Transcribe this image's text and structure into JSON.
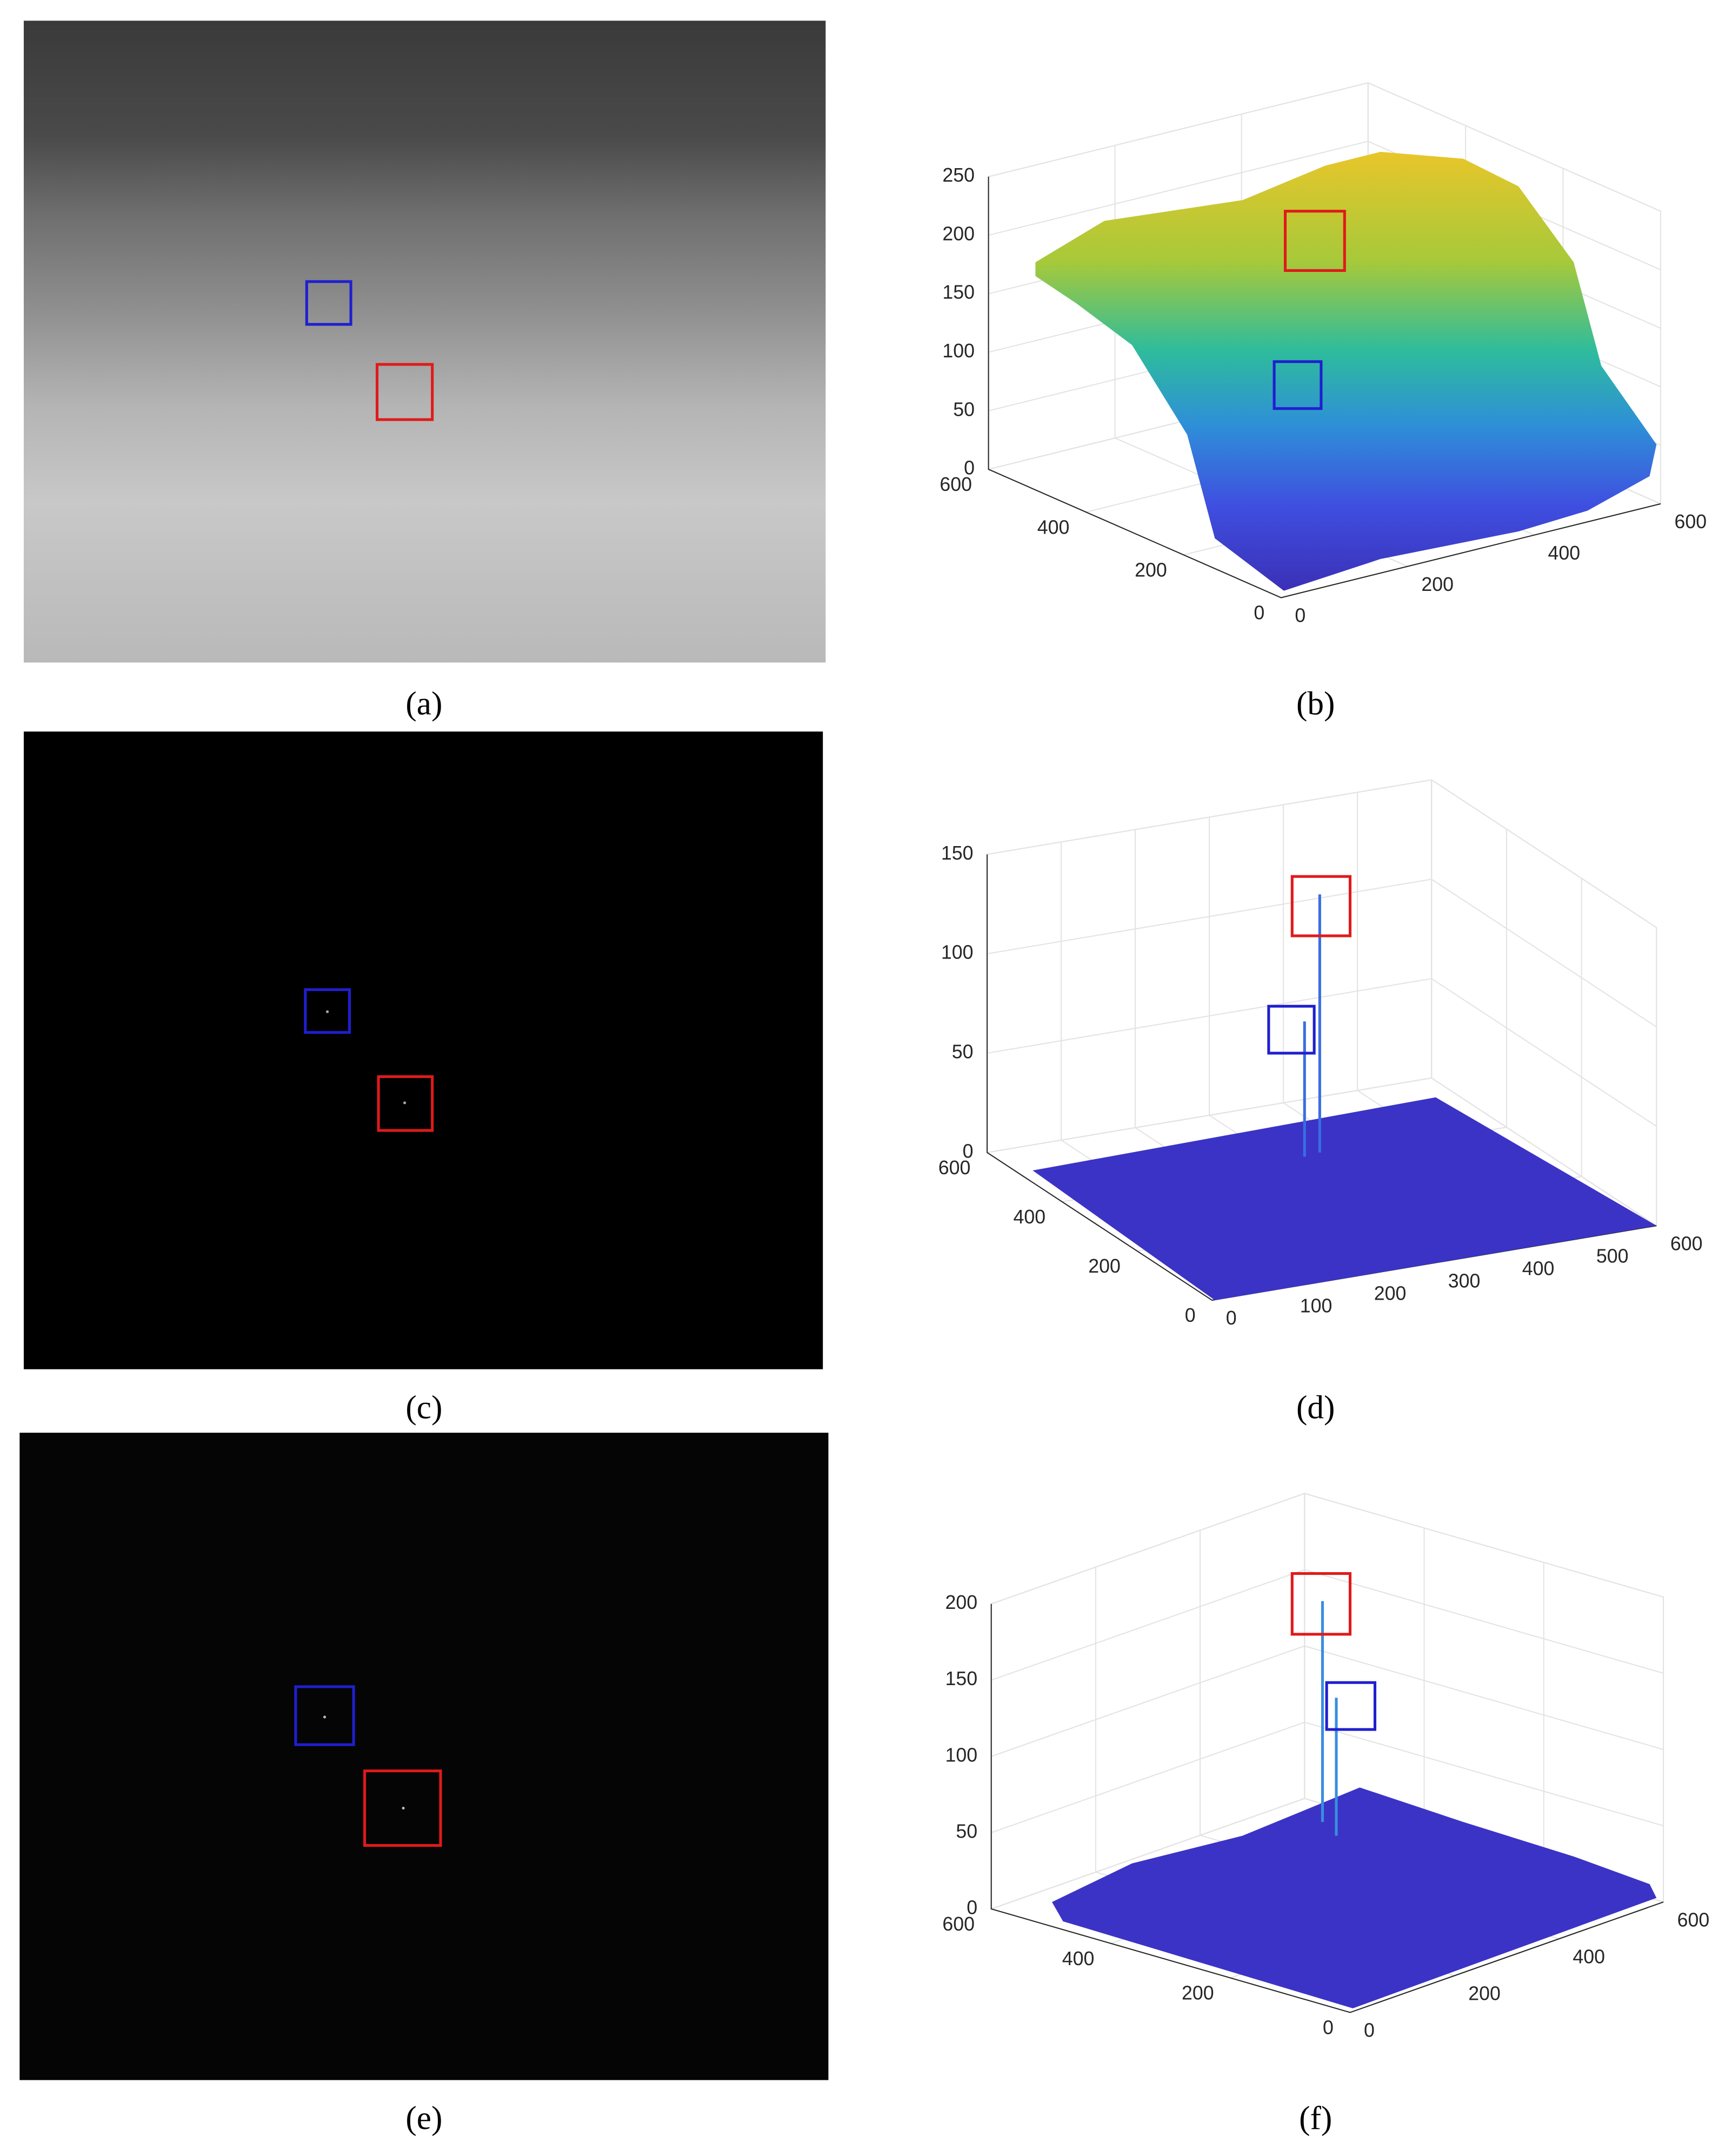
{
  "figure": {
    "panels": [
      {
        "caption": "(a)"
      },
      {
        "caption": "(b)",
        "z_ticks": [
          0,
          50,
          100,
          150,
          200,
          250
        ],
        "y_ticks": [
          0,
          200,
          400,
          600
        ],
        "x_ticks": [
          0,
          200,
          400,
          600
        ]
      },
      {
        "caption": "(c)"
      },
      {
        "caption": "(d)",
        "z_ticks": [
          0,
          50,
          100,
          150
        ],
        "y_ticks": [
          0,
          200,
          400,
          600
        ],
        "x_ticks": [
          0,
          100,
          200,
          300,
          400,
          500,
          600
        ]
      },
      {
        "caption": "(e)"
      },
      {
        "caption": "(f)",
        "z_ticks": [
          0,
          50,
          100,
          150,
          200
        ],
        "y_ticks": [
          0,
          200,
          400,
          600
        ],
        "x_ticks": [
          0,
          200,
          400,
          600
        ]
      }
    ]
  }
}
